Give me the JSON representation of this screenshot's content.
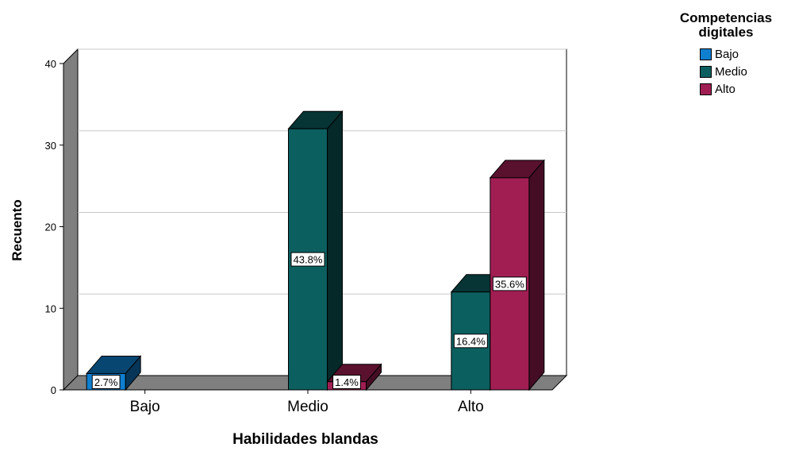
{
  "chart_data": {
    "type": "bar",
    "style": "3d-clustered",
    "xlabel": "Habilidades blandas",
    "ylabel": "Recuento",
    "ylim": [
      0,
      40
    ],
    "yticks": [
      0,
      10,
      20,
      30,
      40
    ],
    "grid": true,
    "legend_position": "top-right",
    "legend_title": "Competencias digitales",
    "categories": [
      "Bajo",
      "Medio",
      "Alto"
    ],
    "series": [
      {
        "name": "Bajo",
        "color": "#0f7fd0",
        "values": [
          2,
          0,
          0
        ],
        "labels": [
          "2.7%",
          null,
          null
        ]
      },
      {
        "name": "Medio",
        "color": "#0c5f5f",
        "values": [
          0,
          32,
          12
        ],
        "labels": [
          null,
          "43.8%",
          "16.4%"
        ]
      },
      {
        "name": "Alto",
        "color": "#a11e53",
        "values": [
          0,
          1,
          26
        ],
        "labels": [
          null,
          "1.4%",
          "35.6%"
        ]
      }
    ]
  }
}
